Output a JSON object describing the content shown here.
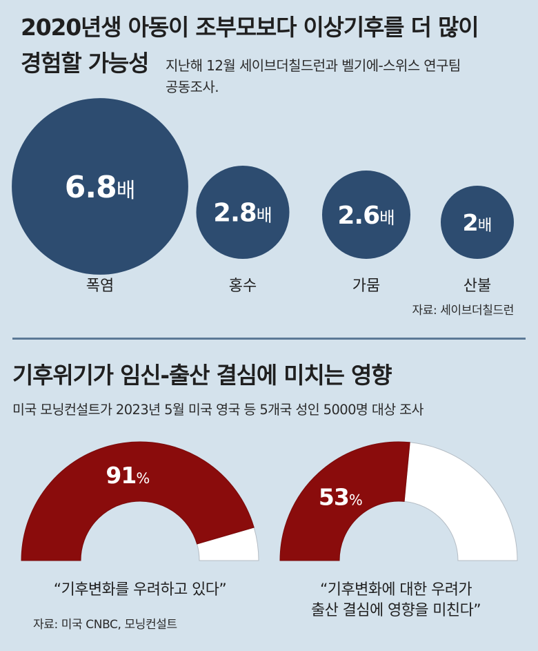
{
  "colors": {
    "background": "#d4e2ec",
    "divider": "#5b7996",
    "text": "#1f1f1f"
  },
  "chart_data": [
    {
      "type": "scatter",
      "title": "2020년생 아동이 조부모보다 이상기후를 더 많이\n경험할 가능성",
      "subtitle": "지난해 12월 세이브더칠드런과 벨기에-스위스 연구팀\n공동조사.",
      "categories": [
        "폭염",
        "홍수",
        "가뭄",
        "산불"
      ],
      "values": [
        6.8,
        2.8,
        2.6,
        2
      ],
      "unit": "배",
      "source": "자료: 세이브더칠드런",
      "color": "#2d4c70"
    },
    {
      "type": "pie",
      "title": "기후위기가 임신-출산 결심에 미치는 영향",
      "subtitle": "미국 모닝컨설트가 2023년 5월 미국 영국 등 5개국 성인 5000명 대상 조사",
      "categories": [
        "“기후변화를 우려하고 있다”",
        "“기후변화에 대한 우려가\n출산 결심에 영향을 미친다”"
      ],
      "values": [
        91,
        53
      ],
      "unit": "%",
      "range": [
        0,
        100
      ],
      "source": "자료: 미국 CNBC, 모닝컨설트",
      "colors": {
        "filled": "#8a0c0c",
        "remaining": "#ffffff"
      }
    }
  ]
}
